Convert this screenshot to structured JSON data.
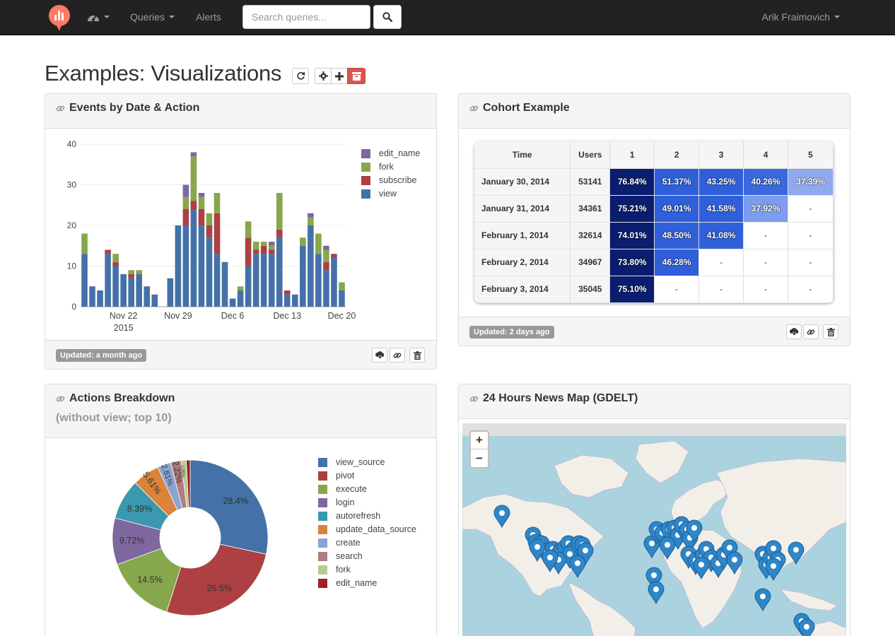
{
  "nav": {
    "queries_label": "Queries",
    "alerts_label": "Alerts",
    "search_placeholder": "Search queries...",
    "user_name": "Arik Fraimovich"
  },
  "page": {
    "title": "Examples: Visualizations"
  },
  "widgets": {
    "events": {
      "title": "Events by Date & Action",
      "updated": "Updated: a month ago"
    },
    "cohort": {
      "title": "Cohort Example",
      "updated": "Updated: 2 days ago",
      "headers": [
        "Time",
        "Users",
        "1",
        "2",
        "3",
        "4",
        "5"
      ],
      "rows": [
        {
          "date": "January 30, 2014",
          "users": "53141",
          "values": [
            "76.84%",
            "51.37%",
            "43.25%",
            "40.26%",
            "37.39%"
          ]
        },
        {
          "date": "January 31, 2014",
          "users": "34361",
          "values": [
            "75.21%",
            "49.01%",
            "41.58%",
            "37.92%",
            "-"
          ]
        },
        {
          "date": "February 1, 2014",
          "users": "32614",
          "values": [
            "74.01%",
            "48.50%",
            "41.08%",
            "-",
            "-"
          ]
        },
        {
          "date": "February 2, 2014",
          "users": "34967",
          "values": [
            "73.80%",
            "46.28%",
            "-",
            "-",
            "-"
          ]
        },
        {
          "date": "February 3, 2014",
          "users": "35045",
          "values": [
            "75.10%",
            "-",
            "-",
            "-",
            "-"
          ]
        }
      ]
    },
    "actions": {
      "title": "Actions Breakdown",
      "subtitle": "(without view; top 10)"
    },
    "map": {
      "title": "24 Hours News Map (GDELT)",
      "zoom_in": "+",
      "zoom_out": "−"
    }
  },
  "chart_data": [
    {
      "type": "bar",
      "stacked": true,
      "x": [
        "Nov 17",
        "Nov 18",
        "Nov 19",
        "Nov 20",
        "Nov 21",
        "Nov 22",
        "Nov 23",
        "Nov 24",
        "Nov 25",
        "Nov 26",
        "Nov 27",
        "Nov 28",
        "Nov 29",
        "Nov 30",
        "Dec 1",
        "Dec 2",
        "Dec 3",
        "Dec 4",
        "Dec 5",
        "Dec 6",
        "Dec 7",
        "Dec 8",
        "Dec 9",
        "Dec 10",
        "Dec 11",
        "Dec 12",
        "Dec 13",
        "Dec 14",
        "Dec 15",
        "Dec 16",
        "Dec 17",
        "Dec 18",
        "Dec 19",
        "Dec 20"
      ],
      "x_tick_labels": [
        "Nov 22",
        "Nov 29",
        "Dec 6",
        "Dec 13",
        "Dec 20"
      ],
      "x_tick_sublabel": "2015",
      "y_ticks": [
        "0",
        "10",
        "20",
        "30",
        "40"
      ],
      "ylim": [
        0,
        40
      ],
      "series": [
        {
          "name": "edit_name",
          "color": "#7f67a0",
          "values": [
            0,
            0,
            0,
            0,
            0,
            0,
            0,
            0,
            0,
            0,
            0,
            0,
            0,
            3,
            1,
            1,
            0,
            0,
            0,
            0,
            0,
            0,
            0,
            0,
            1,
            0,
            0,
            0,
            0,
            1,
            0,
            1,
            0,
            0
          ]
        },
        {
          "name": "fork",
          "color": "#86a74b",
          "values": [
            5,
            0,
            0,
            0,
            2,
            0,
            1,
            1,
            0,
            0,
            0,
            0,
            0,
            3,
            11,
            3,
            3,
            5,
            0,
            0,
            1,
            4,
            2,
            1,
            1,
            9,
            0,
            0,
            2,
            2,
            5,
            3,
            0,
            2
          ]
        },
        {
          "name": "subscribe",
          "color": "#ac4042",
          "values": [
            0,
            0,
            0,
            1,
            1,
            0,
            1,
            0,
            0,
            0,
            0,
            0,
            0,
            4,
            2,
            4,
            3,
            10,
            0,
            0,
            0,
            7,
            1,
            2,
            1,
            2,
            1,
            0,
            0,
            0,
            0,
            2,
            1,
            0
          ]
        },
        {
          "name": "view",
          "color": "#4472a8",
          "values": [
            13,
            5,
            4,
            13,
            10,
            8,
            7,
            8,
            5,
            3,
            0,
            7,
            20,
            20,
            24,
            20,
            17,
            13,
            11,
            2,
            4,
            10,
            13,
            13,
            13,
            17,
            3,
            3,
            15,
            20,
            13,
            9,
            12,
            4
          ]
        }
      ],
      "legend": [
        "edit_name",
        "fork",
        "subscribe",
        "view"
      ]
    },
    {
      "type": "pie",
      "donut": true,
      "labels": [
        "view_source",
        "pivot",
        "execute",
        "login",
        "autorefresh",
        "update_data_source",
        "create",
        "search",
        "fork",
        "edit_name"
      ],
      "values": [
        28.4,
        26.5,
        14.5,
        9.72,
        8.39,
        5.61,
        2.81,
        2.22,
        1.05,
        0.8
      ],
      "value_labels": [
        "28.4%",
        "26.5%",
        "14.5%",
        "9.72%",
        "8.39%",
        "5.61%",
        "2.81%",
        "2.22%",
        "1.05%",
        ""
      ],
      "colors": [
        "#4472a8",
        "#ac4042",
        "#86a74b",
        "#7f67a0",
        "#3b98ae",
        "#db8339",
        "#8aa5d4",
        "#b07c7d",
        "#b5cc93",
        "#a22022"
      ]
    }
  ],
  "map_markers_count": 60
}
